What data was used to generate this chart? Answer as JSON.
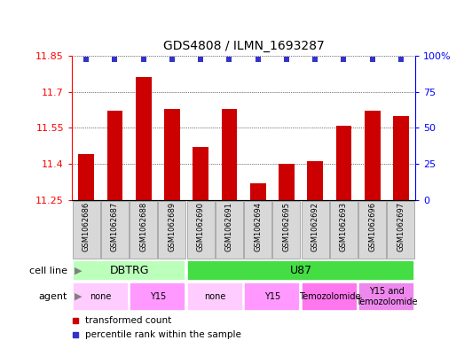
{
  "title": "GDS4808 / ILMN_1693287",
  "samples": [
    "GSM1062686",
    "GSM1062687",
    "GSM1062688",
    "GSM1062689",
    "GSM1062690",
    "GSM1062691",
    "GSM1062694",
    "GSM1062695",
    "GSM1062692",
    "GSM1062693",
    "GSM1062696",
    "GSM1062697"
  ],
  "bar_values": [
    11.44,
    11.62,
    11.76,
    11.63,
    11.47,
    11.63,
    11.32,
    11.4,
    11.41,
    11.56,
    11.62,
    11.6
  ],
  "bar_color": "#cc0000",
  "dot_color": "#3333cc",
  "ylim_left": [
    11.25,
    11.85
  ],
  "yticks_left": [
    11.25,
    11.4,
    11.55,
    11.7,
    11.85
  ],
  "yticks_right": [
    0,
    25,
    50,
    75,
    100
  ],
  "cell_line_groups": [
    {
      "label": "DBTRG",
      "start": 0,
      "end": 3,
      "color": "#bbffbb"
    },
    {
      "label": "U87",
      "start": 4,
      "end": 11,
      "color": "#44dd44"
    }
  ],
  "agent_groups": [
    {
      "label": "none",
      "start": 0,
      "end": 1,
      "color": "#ffccff"
    },
    {
      "label": "Y15",
      "start": 2,
      "end": 3,
      "color": "#ff99ff"
    },
    {
      "label": "none",
      "start": 4,
      "end": 5,
      "color": "#ffccff"
    },
    {
      "label": "Y15",
      "start": 6,
      "end": 7,
      "color": "#ff99ff"
    },
    {
      "label": "Temozolomide",
      "start": 8,
      "end": 9,
      "color": "#ff77ee"
    },
    {
      "label": "Y15 and\nTemozolomide",
      "start": 10,
      "end": 11,
      "color": "#ee88ee"
    }
  ],
  "sample_box_color": "#d8d8d8",
  "sample_box_edge": "#aaaaaa"
}
